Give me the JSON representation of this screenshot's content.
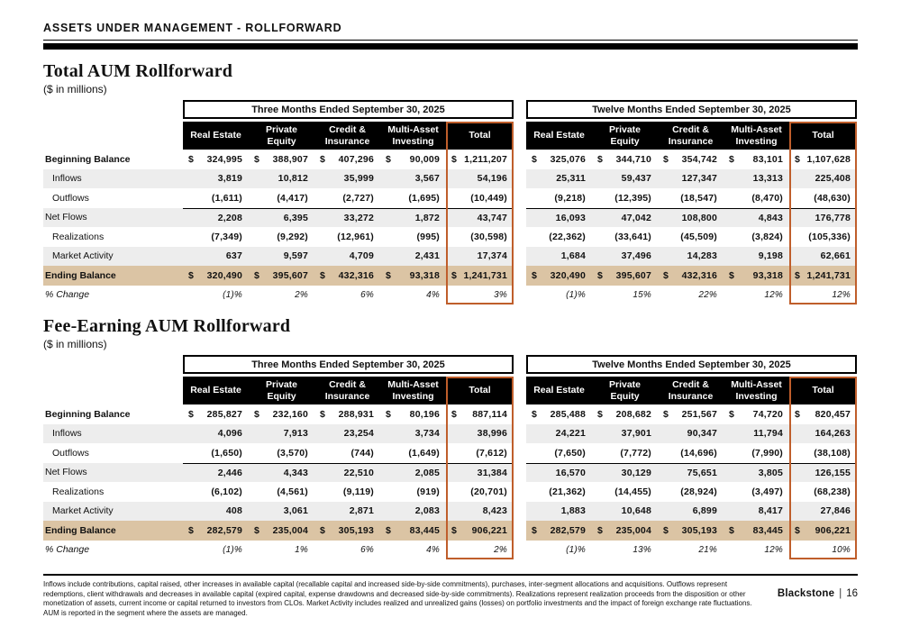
{
  "page": {
    "header_title": "ASSETS UNDER MANAGEMENT - ROLLFORWARD",
    "footer": {
      "footnote": "Inflows include contributions, capital raised, other increases in available capital (recallable capital and increased side-by-side commitments), purchases, inter-segment allocations and acquisitions. Outflows represent redemptions, client withdrawals and decreases in available capital (expired capital, expense drawdowns and decreased side-by-side commitments). Realizations represent realization proceeds from the disposition or other monetization of assets, current income or capital returned to investors from CLOs. Market Activity includes realized and unrealized gains (losses) on portfolio investments and the impact of foreign exchange rate fluctuations. AUM is reported in the segment where the assets are managed.",
      "brand": "Blackstone",
      "separator": "|",
      "page_number": "16"
    }
  },
  "colors": {
    "accent_orange": "#BF5E2B",
    "ending_balance_tan": "#DBC4A4",
    "stripe_gray": "#EDEDED",
    "header_black": "#000000"
  },
  "sections": [
    {
      "id": "total-aum-rollforward",
      "title": "Total AUM Rollforward",
      "units": "($ in millions)",
      "rows": [
        {
          "label": "Beginning Balance",
          "bold": true,
          "dollar": true,
          "shade": "white"
        },
        {
          "label": "Inflows",
          "indent": true,
          "shade": "gray"
        },
        {
          "label": "Outflows",
          "indent": true,
          "shade": "white"
        },
        {
          "label": "Net Flows",
          "shade": "gray",
          "rule_above": true
        },
        {
          "label": "Realizations",
          "indent": true,
          "shade": "white"
        },
        {
          "label": "Market Activity",
          "indent": true,
          "shade": "gray"
        },
        {
          "label": "Ending Balance",
          "bold": true,
          "dollar": true,
          "shade": "tan"
        },
        {
          "label": "% Change",
          "italic": true,
          "percent": true,
          "shade": "white"
        }
      ],
      "tables": [
        {
          "period": "Three Months Ended September 30, 2025",
          "columns": [
            "Real Estate",
            "Private Equity",
            "Credit & Insurance",
            "Multi-Asset Investing",
            "Total"
          ],
          "rows": [
            [
              "324,995",
              "388,907",
              "407,296",
              "90,009",
              "1,211,207"
            ],
            [
              "3,819",
              "10,812",
              "35,999",
              "3,567",
              "54,196"
            ],
            [
              "(1,611)",
              "(4,417)",
              "(2,727)",
              "(1,695)",
              "(10,449)"
            ],
            [
              "2,208",
              "6,395",
              "33,272",
              "1,872",
              "43,747"
            ],
            [
              "(7,349)",
              "(9,292)",
              "(12,961)",
              "(995)",
              "(30,598)"
            ],
            [
              "637",
              "9,597",
              "4,709",
              "2,431",
              "17,374"
            ],
            [
              "320,490",
              "395,607",
              "432,316",
              "93,318",
              "1,241,731"
            ],
            [
              "(1)%",
              "2%",
              "6%",
              "4%",
              "3%"
            ]
          ]
        },
        {
          "period": "Twelve Months Ended September 30, 2025",
          "columns": [
            "Real Estate",
            "Private Equity",
            "Credit & Insurance",
            "Multi-Asset Investing",
            "Total"
          ],
          "rows": [
            [
              "325,076",
              "344,710",
              "354,742",
              "83,101",
              "1,107,628"
            ],
            [
              "25,311",
              "59,437",
              "127,347",
              "13,313",
              "225,408"
            ],
            [
              "(9,218)",
              "(12,395)",
              "(18,547)",
              "(8,470)",
              "(48,630)"
            ],
            [
              "16,093",
              "47,042",
              "108,800",
              "4,843",
              "176,778"
            ],
            [
              "(22,362)",
              "(33,641)",
              "(45,509)",
              "(3,824)",
              "(105,336)"
            ],
            [
              "1,684",
              "37,496",
              "14,283",
              "9,198",
              "62,661"
            ],
            [
              "320,490",
              "395,607",
              "432,316",
              "93,318",
              "1,241,731"
            ],
            [
              "(1)%",
              "15%",
              "22%",
              "12%",
              "12%"
            ]
          ]
        }
      ]
    },
    {
      "id": "fee-earning-aum-rollforward",
      "title": "Fee-Earning AUM Rollforward",
      "units": "($ in millions)",
      "rows": [
        {
          "label": "Beginning Balance",
          "bold": true,
          "dollar": true,
          "shade": "white"
        },
        {
          "label": "Inflows",
          "indent": true,
          "shade": "gray"
        },
        {
          "label": "Outflows",
          "indent": true,
          "shade": "white"
        },
        {
          "label": "Net Flows",
          "shade": "gray",
          "rule_above": true
        },
        {
          "label": "Realizations",
          "indent": true,
          "shade": "white"
        },
        {
          "label": "Market Activity",
          "indent": true,
          "shade": "gray"
        },
        {
          "label": "Ending Balance",
          "bold": true,
          "dollar": true,
          "shade": "tan"
        },
        {
          "label": "% Change",
          "italic": true,
          "percent": true,
          "shade": "white"
        }
      ],
      "tables": [
        {
          "period": "Three Months Ended September 30, 2025",
          "columns": [
            "Real Estate",
            "Private Equity",
            "Credit & Insurance",
            "Multi-Asset Investing",
            "Total"
          ],
          "rows": [
            [
              "285,827",
              "232,160",
              "288,931",
              "80,196",
              "887,114"
            ],
            [
              "4,096",
              "7,913",
              "23,254",
              "3,734",
              "38,996"
            ],
            [
              "(1,650)",
              "(3,570)",
              "(744)",
              "(1,649)",
              "(7,612)"
            ],
            [
              "2,446",
              "4,343",
              "22,510",
              "2,085",
              "31,384"
            ],
            [
              "(6,102)",
              "(4,561)",
              "(9,119)",
              "(919)",
              "(20,701)"
            ],
            [
              "408",
              "3,061",
              "2,871",
              "2,083",
              "8,423"
            ],
            [
              "282,579",
              "235,004",
              "305,193",
              "83,445",
              "906,221"
            ],
            [
              "(1)%",
              "1%",
              "6%",
              "4%",
              "2%"
            ]
          ]
        },
        {
          "period": "Twelve Months Ended September 30, 2025",
          "columns": [
            "Real Estate",
            "Private Equity",
            "Credit & Insurance",
            "Multi-Asset Investing",
            "Total"
          ],
          "rows": [
            [
              "285,488",
              "208,682",
              "251,567",
              "74,720",
              "820,457"
            ],
            [
              "24,221",
              "37,901",
              "90,347",
              "11,794",
              "164,263"
            ],
            [
              "(7,650)",
              "(7,772)",
              "(14,696)",
              "(7,990)",
              "(38,108)"
            ],
            [
              "16,570",
              "30,129",
              "75,651",
              "3,805",
              "126,155"
            ],
            [
              "(21,362)",
              "(14,455)",
              "(28,924)",
              "(3,497)",
              "(68,238)"
            ],
            [
              "1,883",
              "10,648",
              "6,899",
              "8,417",
              "27,846"
            ],
            [
              "282,579",
              "235,004",
              "305,193",
              "83,445",
              "906,221"
            ],
            [
              "(1)%",
              "13%",
              "21%",
              "12%",
              "10%"
            ]
          ]
        }
      ]
    }
  ]
}
